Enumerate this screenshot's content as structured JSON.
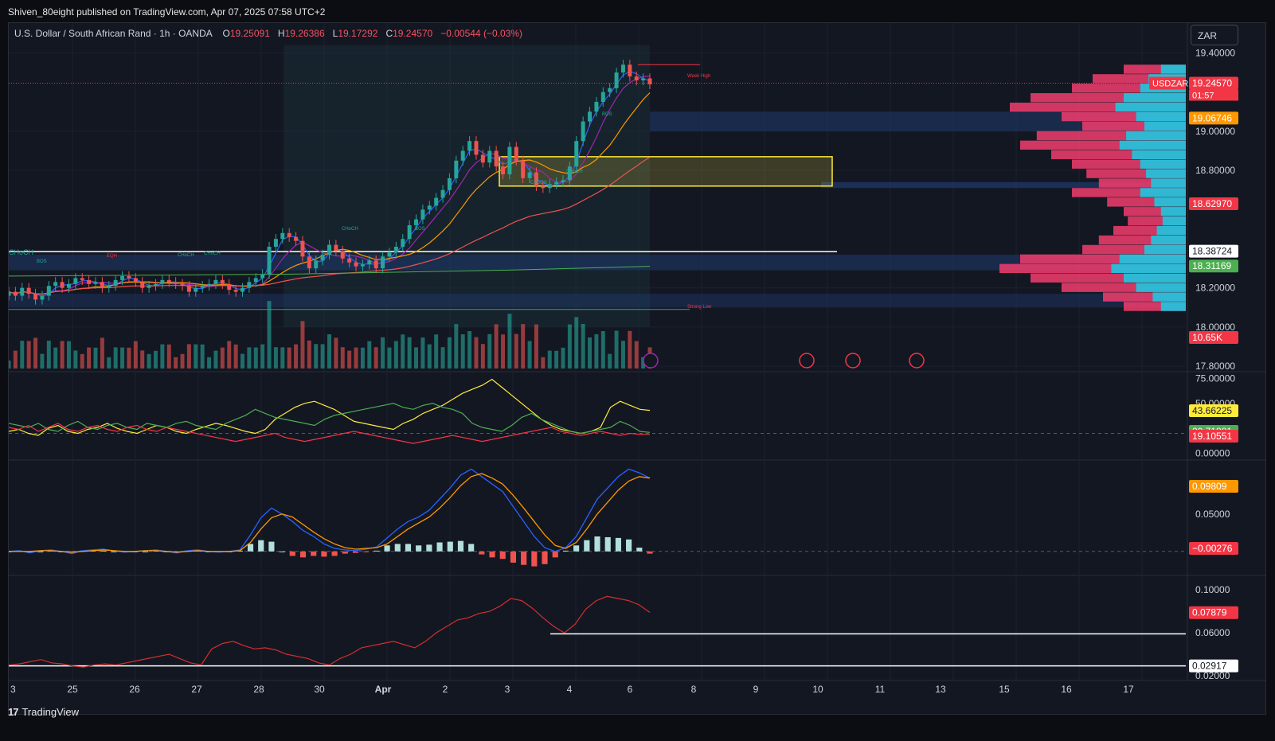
{
  "publisher": "Shiven_80eight published on TradingView.com, Apr 07, 2025 07:58 UTC+2",
  "legend": {
    "title": "U.S. Dollar / South African Rand · 1h · OANDA",
    "o_label": "O",
    "o_value": "19.25091",
    "h_label": "H",
    "h_value": "19.26386",
    "l_label": "L",
    "l_value": "19.17292",
    "c_label": "C",
    "c_value": "19.24570",
    "change": "−0.00544 (−0.03%)"
  },
  "currency_button": "ZAR",
  "brand": "TradingView",
  "colors": {
    "bg": "#131722",
    "up": "#26a69a",
    "down": "#ef5350",
    "accent_pink": "#f23d6d",
    "cyan": "#1ec7e0",
    "yellow": "#ffeb3b",
    "orange": "#ff9800",
    "green": "#4caf50"
  },
  "chart_data": [
    {
      "type": "candlestick",
      "pane": "price",
      "symbol_tag": "USDZAR",
      "countdown": "01:57",
      "x_ticks": [
        "3",
        "25",
        "26",
        "27",
        "28",
        "30",
        "Apr",
        "2",
        "3",
        "4",
        "6",
        "8",
        "9",
        "10",
        "11",
        "13",
        "15",
        "16",
        "17"
      ],
      "y_ticks": [
        "19.40000",
        "19.00000",
        "18.80000",
        "18.20000",
        "18.00000",
        "17.80000"
      ],
      "ylim": [
        17.78,
        19.52
      ],
      "price_labels": [
        {
          "text": "19.24570",
          "color": "#f23645"
        },
        {
          "text": "19.06746",
          "color": "#ff9800"
        },
        {
          "text": "18.62970",
          "color": "#f23645"
        },
        {
          "text": "18.38724",
          "color": "#ffffff"
        },
        {
          "text": "18.31169",
          "color": "#4caf50"
        },
        {
          "text": "10.65K",
          "color": "#f23645"
        }
      ],
      "annotations": [
        "Week High",
        "Strong Low",
        "CHoCH",
        "BOS",
        "EQH",
        "CHoCH",
        "CHoCH",
        "CHoCH",
        "BOS",
        "BOS",
        "CHoCH",
        "CHoCH"
      ],
      "close_series": [
        18.18,
        18.16,
        18.2,
        18.17,
        18.14,
        18.16,
        18.21,
        18.23,
        18.2,
        18.22,
        18.25,
        18.24,
        18.22,
        18.23,
        18.2,
        18.21,
        18.24,
        18.26,
        18.25,
        18.23,
        18.2,
        18.21,
        18.22,
        18.24,
        18.23,
        18.22,
        18.21,
        18.18,
        18.2,
        18.21,
        18.22,
        18.24,
        18.22,
        18.19,
        18.18,
        18.2,
        18.23,
        18.25,
        18.27,
        18.41,
        18.45,
        18.48,
        18.46,
        18.44,
        18.36,
        18.3,
        18.34,
        18.37,
        18.42,
        18.39,
        18.35,
        18.33,
        18.31,
        18.32,
        18.34,
        18.3,
        18.36,
        18.38,
        18.41,
        18.45,
        18.52,
        18.55,
        18.6,
        18.62,
        18.66,
        18.7,
        18.76,
        18.85,
        18.9,
        18.95,
        18.88,
        18.84,
        18.9,
        18.82,
        18.78,
        18.92,
        18.85,
        18.76,
        18.79,
        18.72,
        18.71,
        18.73,
        18.74,
        18.75,
        18.82,
        18.95,
        19.05,
        19.1,
        19.15,
        19.2,
        19.22,
        19.3,
        19.34,
        19.28,
        19.26,
        19.27,
        19.24
      ]
    },
    {
      "type": "line",
      "pane": "oscillator",
      "y_ticks": [
        "75.00000",
        "50.00000",
        "0.00000"
      ],
      "ylim": [
        -5,
        80
      ],
      "value_labels": [
        {
          "text": "43.66225",
          "color": "#ffeb3b"
        },
        {
          "text": "20.71881",
          "color": "#4caf50"
        },
        {
          "text": "19.10551",
          "color": "#f23645"
        }
      ],
      "series": [
        {
          "color": "#ffeb3b",
          "values": [
            22,
            24,
            20,
            18,
            25,
            28,
            22,
            20,
            24,
            26,
            30,
            25,
            22,
            20,
            24,
            28,
            26,
            22,
            20,
            24,
            27,
            30,
            28,
            25,
            22,
            20,
            24,
            34,
            40,
            46,
            50,
            52,
            48,
            44,
            38,
            32,
            30,
            28,
            26,
            24,
            30,
            34,
            40,
            44,
            48,
            54,
            60,
            64,
            68,
            74,
            66,
            58,
            50,
            42,
            34,
            28,
            24,
            22,
            20,
            22,
            26,
            46,
            52,
            48,
            44,
            43
          ]
        },
        {
          "color": "#4caf50",
          "values": [
            30,
            28,
            26,
            30,
            24,
            22,
            28,
            32,
            26,
            24,
            28,
            30,
            26,
            24,
            30,
            28,
            26,
            30,
            32,
            28,
            26,
            24,
            30,
            34,
            38,
            44,
            40,
            36,
            34,
            32,
            30,
            28,
            34,
            38,
            40,
            42,
            44,
            46,
            48,
            50,
            46,
            44,
            48,
            50,
            46,
            44,
            40,
            30,
            26,
            24,
            22,
            28,
            36,
            40,
            34,
            30,
            26,
            22,
            20,
            22,
            24,
            26,
            32,
            28,
            22,
            21
          ]
        },
        {
          "color": "#f23645",
          "values": [
            26,
            24,
            28,
            22,
            26,
            30,
            24,
            22,
            26,
            28,
            24,
            22,
            26,
            28,
            24,
            22,
            26,
            24,
            22,
            20,
            18,
            16,
            14,
            12,
            14,
            16,
            18,
            20,
            16,
            14,
            12,
            14,
            16,
            18,
            20,
            22,
            20,
            18,
            16,
            14,
            12,
            10,
            12,
            14,
            16,
            18,
            16,
            14,
            12,
            14,
            16,
            18,
            20,
            22,
            24,
            26,
            22,
            20,
            18,
            20,
            22,
            20,
            18,
            20,
            19,
            19
          ]
        }
      ]
    },
    {
      "type": "line",
      "pane": "macd",
      "y_ticks": [
        "0.05000"
      ],
      "ylim": [
        -0.03,
        0.12
      ],
      "value_labels": [
        {
          "text": "0.09809",
          "color": "#ff9800"
        },
        {
          "text": "−0.00276",
          "color": "#f23645"
        }
      ],
      "series": [
        {
          "name": "",
          "color": "#2962ff",
          "values": [
            0.0,
            0.001,
            -0.002,
            0.001,
            0.002,
            0.0,
            -0.003,
            0.001,
            0.002,
            0.003,
            0.001,
            -0.001,
            0.0,
            0.001,
            0.002,
            0.0,
            -0.002,
            0.001,
            0.002,
            0.0,
            -0.001,
            0.0,
            0.002,
            0.022,
            0.045,
            0.058,
            0.05,
            0.04,
            0.028,
            0.02,
            0.01,
            0.004,
            0.002,
            0.001,
            0.003,
            0.006,
            0.018,
            0.03,
            0.04,
            0.046,
            0.055,
            0.07,
            0.085,
            0.102,
            0.11,
            0.1,
            0.09,
            0.08,
            0.06,
            0.04,
            0.02,
            0.005,
            0.0,
            0.005,
            0.02,
            0.045,
            0.07,
            0.085,
            0.1,
            0.11,
            0.105,
            0.098
          ]
        },
        {
          "name": "",
          "color": "#ff9800",
          "values": [
            0.0,
            0.0,
            0.0,
            0.001,
            0.001,
            0.0,
            -0.001,
            0.0,
            0.001,
            0.002,
            0.001,
            0.0,
            0.0,
            0.001,
            0.001,
            0.0,
            -0.001,
            0.0,
            0.001,
            0.0,
            0.0,
            0.0,
            0.001,
            0.012,
            0.03,
            0.045,
            0.05,
            0.046,
            0.036,
            0.026,
            0.017,
            0.01,
            0.005,
            0.003,
            0.004,
            0.005,
            0.01,
            0.02,
            0.03,
            0.038,
            0.046,
            0.058,
            0.072,
            0.088,
            0.1,
            0.104,
            0.098,
            0.09,
            0.075,
            0.058,
            0.04,
            0.022,
            0.008,
            0.004,
            0.012,
            0.03,
            0.05,
            0.066,
            0.082,
            0.094,
            0.1,
            0.098
          ]
        }
      ],
      "histogram": [
        0.0,
        0.001,
        -0.002,
        0.0,
        0.001,
        0.0,
        -0.002,
        0.001,
        0.001,
        0.001,
        0.0,
        -0.001,
        0.0,
        0.0,
        0.001,
        0.0,
        -0.001,
        0.001,
        0.001,
        0.0,
        -0.001,
        0.0,
        0.001,
        0.01,
        0.015,
        0.013,
        0.0,
        -0.006,
        -0.008,
        -0.006,
        -0.007,
        -0.006,
        -0.003,
        -0.002,
        -0.001,
        0.001,
        0.008,
        0.01,
        0.01,
        0.008,
        0.009,
        0.012,
        0.013,
        0.014,
        0.01,
        -0.004,
        -0.008,
        -0.01,
        -0.015,
        -0.018,
        -0.02,
        -0.017,
        -0.008,
        0.001,
        0.008,
        0.015,
        0.02,
        0.019,
        0.018,
        0.016,
        0.005,
        -0.003
      ]
    },
    {
      "type": "line",
      "pane": "volatility",
      "y_ticks": [
        "0.10000",
        "0.06000",
        "0.02000"
      ],
      "ylim": [
        0.017,
        0.112
      ],
      "value_labels": [
        {
          "text": "0.07879",
          "color": "#f23645"
        },
        {
          "text": "0.02917",
          "color": "#ffffff"
        }
      ],
      "series": [
        {
          "color": "#d32f2f",
          "values": [
            0.03,
            0.031,
            0.033,
            0.035,
            0.032,
            0.031,
            0.029,
            0.028,
            0.03,
            0.031,
            0.03,
            0.032,
            0.034,
            0.036,
            0.038,
            0.04,
            0.036,
            0.032,
            0.03,
            0.045,
            0.05,
            0.052,
            0.048,
            0.045,
            0.046,
            0.044,
            0.04,
            0.038,
            0.036,
            0.032,
            0.03,
            0.036,
            0.04,
            0.046,
            0.048,
            0.05,
            0.052,
            0.049,
            0.046,
            0.052,
            0.06,
            0.066,
            0.072,
            0.074,
            0.078,
            0.08,
            0.085,
            0.092,
            0.09,
            0.083,
            0.074,
            0.066,
            0.06,
            0.068,
            0.082,
            0.09,
            0.094,
            0.092,
            0.09,
            0.086,
            0.079
          ]
        }
      ]
    }
  ]
}
